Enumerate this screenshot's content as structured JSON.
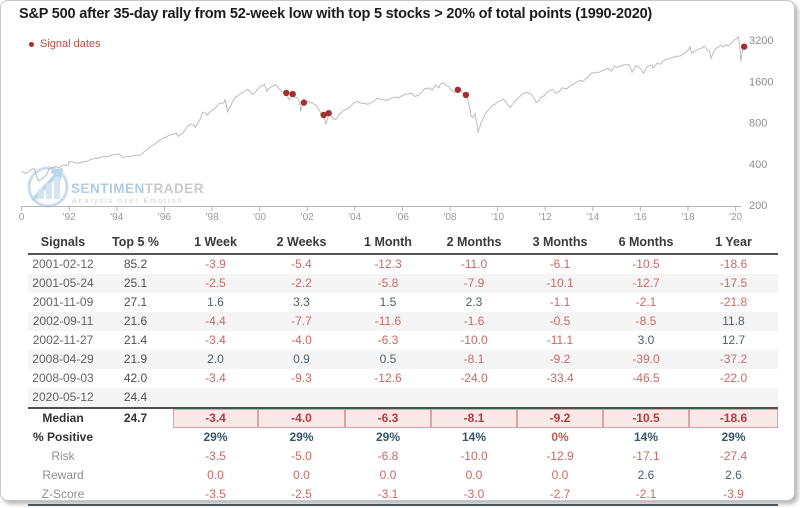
{
  "chart_data": {
    "type": "line",
    "title": "S&P 500 after 35-day rally from 52-week low with top 5 stocks > 20% of total points (1990-2020)",
    "legend": "Signal dates",
    "xlabel": "",
    "ylabel": "",
    "yscale": "log",
    "ylim": [
      200,
      3400
    ],
    "xlim": [
      1990,
      2020.45
    ],
    "yticks": [
      3200,
      1600,
      800,
      400,
      200
    ],
    "xticks": [
      {
        "year": 1990,
        "label": "0"
      },
      {
        "year": 1992,
        "label": "'92"
      },
      {
        "year": 1994,
        "label": "'94"
      },
      {
        "year": 1996,
        "label": "'96"
      },
      {
        "year": 1998,
        "label": "'98"
      },
      {
        "year": 2000,
        "label": "'00"
      },
      {
        "year": 2002,
        "label": "'02"
      },
      {
        "year": 2004,
        "label": "'04"
      },
      {
        "year": 2006,
        "label": "'06"
      },
      {
        "year": 2008,
        "label": "'08"
      },
      {
        "year": 2010,
        "label": "'10"
      },
      {
        "year": 2012,
        "label": "'12"
      },
      {
        "year": 2014,
        "label": "'14"
      },
      {
        "year": 2016,
        "label": "'16"
      },
      {
        "year": 2018,
        "label": "'18"
      },
      {
        "year": 2020,
        "label": "'20"
      }
    ],
    "line_color": "#bcbcbc",
    "signal_color": "#a33030",
    "axis_text_color": "#999999",
    "series": [
      [
        1990.0,
        353
      ],
      [
        1990.15,
        340
      ],
      [
        1990.3,
        350
      ],
      [
        1990.45,
        368
      ],
      [
        1990.55,
        362
      ],
      [
        1990.7,
        300
      ],
      [
        1990.8,
        305
      ],
      [
        1990.95,
        322
      ],
      [
        1991.05,
        330
      ],
      [
        1991.15,
        368
      ],
      [
        1991.3,
        375
      ],
      [
        1991.45,
        380
      ],
      [
        1991.6,
        378
      ],
      [
        1991.75,
        390
      ],
      [
        1991.95,
        388
      ],
      [
        1992.0,
        415
      ],
      [
        1992.2,
        410
      ],
      [
        1992.35,
        405
      ],
      [
        1992.55,
        412
      ],
      [
        1992.75,
        418
      ],
      [
        1992.95,
        432
      ],
      [
        1993.15,
        440
      ],
      [
        1993.35,
        448
      ],
      [
        1993.55,
        450
      ],
      [
        1993.75,
        460
      ],
      [
        1993.95,
        468
      ],
      [
        1994.1,
        472
      ],
      [
        1994.25,
        445
      ],
      [
        1994.45,
        450
      ],
      [
        1994.65,
        455
      ],
      [
        1994.85,
        462
      ],
      [
        1995.0,
        465
      ],
      [
        1995.25,
        505
      ],
      [
        1995.5,
        545
      ],
      [
        1995.75,
        585
      ],
      [
        1995.95,
        615
      ],
      [
        1996.15,
        640
      ],
      [
        1996.35,
        655
      ],
      [
        1996.5,
        670
      ],
      [
        1996.58,
        635
      ],
      [
        1996.75,
        665
      ],
      [
        1996.95,
        740
      ],
      [
        1997.1,
        780
      ],
      [
        1997.25,
        760
      ],
      [
        1997.3,
        740
      ],
      [
        1997.5,
        850
      ],
      [
        1997.6,
        950
      ],
      [
        1997.75,
        930
      ],
      [
        1997.8,
        905
      ],
      [
        1997.95,
        965
      ],
      [
        1998.1,
        1010
      ],
      [
        1998.3,
        1100
      ],
      [
        1998.5,
        1120
      ],
      [
        1998.55,
        1185
      ],
      [
        1998.65,
        957
      ],
      [
        1998.75,
        1040
      ],
      [
        1998.9,
        1160
      ],
      [
        1999.0,
        1230
      ],
      [
        1999.15,
        1280
      ],
      [
        1999.3,
        1330
      ],
      [
        1999.5,
        1400
      ],
      [
        1999.6,
        1340
      ],
      [
        1999.7,
        1280
      ],
      [
        1999.85,
        1350
      ],
      [
        2000.0,
        1455
      ],
      [
        2000.2,
        1527
      ],
      [
        2000.3,
        1360
      ],
      [
        2000.45,
        1450
      ],
      [
        2000.55,
        1470
      ],
      [
        2000.65,
        1520
      ],
      [
        2000.8,
        1430
      ],
      [
        2000.95,
        1330
      ],
      [
        2001.05,
        1350
      ],
      [
        2001.12,
        1318
      ],
      [
        2001.25,
        1170
      ],
      [
        2001.39,
        1293
      ],
      [
        2001.5,
        1225
      ],
      [
        2001.6,
        1210
      ],
      [
        2001.7,
        1085
      ],
      [
        2001.72,
        966
      ],
      [
        2001.8,
        1070
      ],
      [
        2001.86,
        1120
      ],
      [
        2001.95,
        1140
      ],
      [
        2002.1,
        1130
      ],
      [
        2002.25,
        1105
      ],
      [
        2002.4,
        1050
      ],
      [
        2002.5,
        990
      ],
      [
        2002.6,
        920
      ],
      [
        2002.69,
        909
      ],
      [
        2002.76,
        815
      ],
      [
        2002.8,
        777
      ],
      [
        2002.9,
        938
      ],
      [
        2002.97,
        900
      ],
      [
        2003.1,
        860
      ],
      [
        2003.2,
        840
      ],
      [
        2003.35,
        920
      ],
      [
        2003.5,
        975
      ],
      [
        2003.65,
        1000
      ],
      [
        2003.8,
        1040
      ],
      [
        2003.95,
        1110
      ],
      [
        2004.1,
        1140
      ],
      [
        2004.25,
        1110
      ],
      [
        2004.45,
        1095
      ],
      [
        2004.6,
        1100
      ],
      [
        2004.8,
        1140
      ],
      [
        2004.95,
        1210
      ],
      [
        2005.1,
        1180
      ],
      [
        2005.3,
        1160
      ],
      [
        2005.5,
        1200
      ],
      [
        2005.7,
        1230
      ],
      [
        2005.85,
        1210
      ],
      [
        2005.95,
        1250
      ],
      [
        2006.15,
        1290
      ],
      [
        2006.35,
        1310
      ],
      [
        2006.55,
        1240
      ],
      [
        2006.75,
        1300
      ],
      [
        2006.95,
        1420
      ],
      [
        2007.15,
        1430
      ],
      [
        2007.25,
        1380
      ],
      [
        2007.4,
        1500
      ],
      [
        2007.55,
        1450
      ],
      [
        2007.6,
        1540
      ],
      [
        2007.75,
        1565
      ],
      [
        2007.85,
        1480
      ],
      [
        2007.95,
        1470
      ],
      [
        2008.05,
        1380
      ],
      [
        2008.2,
        1330
      ],
      [
        2008.33,
        1390
      ],
      [
        2008.45,
        1400
      ],
      [
        2008.55,
        1280
      ],
      [
        2008.67,
        1275
      ],
      [
        2008.75,
        1160
      ],
      [
        2008.82,
        1060
      ],
      [
        2008.88,
        900
      ],
      [
        2008.95,
        870
      ],
      [
        2009.05,
        930
      ],
      [
        2009.12,
        805
      ],
      [
        2009.18,
        677
      ],
      [
        2009.3,
        790
      ],
      [
        2009.45,
        910
      ],
      [
        2009.6,
        980
      ],
      [
        2009.75,
        1060
      ],
      [
        2009.95,
        1110
      ],
      [
        2010.1,
        1150
      ],
      [
        2010.25,
        1190
      ],
      [
        2010.4,
        1100
      ],
      [
        2010.52,
        1030
      ],
      [
        2010.65,
        1100
      ],
      [
        2010.8,
        1180
      ],
      [
        2010.95,
        1250
      ],
      [
        2011.1,
        1310
      ],
      [
        2011.25,
        1330
      ],
      [
        2011.4,
        1290
      ],
      [
        2011.55,
        1200
      ],
      [
        2011.62,
        1120
      ],
      [
        2011.75,
        1160
      ],
      [
        2011.8,
        1220
      ],
      [
        2011.95,
        1250
      ],
      [
        2012.1,
        1350
      ],
      [
        2012.3,
        1400
      ],
      [
        2012.45,
        1310
      ],
      [
        2012.6,
        1360
      ],
      [
        2012.75,
        1440
      ],
      [
        2012.9,
        1410
      ],
      [
        2013.05,
        1480
      ],
      [
        2013.25,
        1560
      ],
      [
        2013.45,
        1630
      ],
      [
        2013.55,
        1600
      ],
      [
        2013.75,
        1690
      ],
      [
        2013.95,
        1840
      ],
      [
        2014.15,
        1860
      ],
      [
        2014.3,
        1870
      ],
      [
        2014.5,
        1960
      ],
      [
        2014.65,
        1990
      ],
      [
        2014.78,
        1900
      ],
      [
        2014.9,
        2060
      ],
      [
        2015.05,
        2020
      ],
      [
        2015.2,
        2100
      ],
      [
        2015.4,
        2120
      ],
      [
        2015.55,
        2100
      ],
      [
        2015.65,
        1870
      ],
      [
        2015.8,
        2080
      ],
      [
        2015.9,
        2060
      ],
      [
        2016.05,
        1940
      ],
      [
        2016.12,
        1830
      ],
      [
        2016.3,
        2060
      ],
      [
        2016.5,
        2100
      ],
      [
        2016.53,
        2000
      ],
      [
        2016.7,
        2170
      ],
      [
        2016.85,
        2140
      ],
      [
        2016.95,
        2250
      ],
      [
        2017.1,
        2320
      ],
      [
        2017.3,
        2380
      ],
      [
        2017.5,
        2430
      ],
      [
        2017.7,
        2470
      ],
      [
        2017.9,
        2600
      ],
      [
        2018.0,
        2700
      ],
      [
        2018.08,
        2870
      ],
      [
        2018.15,
        2580
      ],
      [
        2018.28,
        2650
      ],
      [
        2018.4,
        2720
      ],
      [
        2018.55,
        2800
      ],
      [
        2018.7,
        2900
      ],
      [
        2018.78,
        2750
      ],
      [
        2018.9,
        2650
      ],
      [
        2018.97,
        2350
      ],
      [
        2019.1,
        2700
      ],
      [
        2019.25,
        2830
      ],
      [
        2019.4,
        2940
      ],
      [
        2019.5,
        2850
      ],
      [
        2019.6,
        2980
      ],
      [
        2019.7,
        2890
      ],
      [
        2019.85,
        3070
      ],
      [
        2019.97,
        3230
      ],
      [
        2020.08,
        3330
      ],
      [
        2020.12,
        3386
      ],
      [
        2020.17,
        2950
      ],
      [
        2020.22,
        2237
      ],
      [
        2020.28,
        2650
      ],
      [
        2020.33,
        2880
      ],
      [
        2020.36,
        2870
      ]
    ],
    "signals": [
      {
        "date": "2001-02-12",
        "year": 2001.12,
        "value": 1318
      },
      {
        "date": "2001-05-24",
        "year": 2001.39,
        "value": 1293
      },
      {
        "date": "2001-11-09",
        "year": 2001.86,
        "value": 1120
      },
      {
        "date": "2002-09-11",
        "year": 2002.69,
        "value": 909
      },
      {
        "date": "2002-11-27",
        "year": 2002.9,
        "value": 938
      },
      {
        "date": "2008-04-29",
        "year": 2008.33,
        "value": 1390
      },
      {
        "date": "2008-09-03",
        "year": 2008.67,
        "value": 1275
      },
      {
        "date": "2020-05-12",
        "year": 2020.36,
        "value": 2870
      }
    ]
  },
  "watermark": {
    "name_blue": "SENTIMEN",
    "name_gray": "TRADER",
    "tagline": "Analysis over Emotion"
  },
  "table": {
    "headers": [
      "Signals",
      "Top 5 %",
      "1 Week",
      "2 Weeks",
      "1 Month",
      "2 Months",
      "3 Months",
      "6 Months",
      "1 Year"
    ],
    "rows": [
      {
        "date": "2001-02-12",
        "top5": "85.2",
        "vals": [
          "-3.9",
          "-5.4",
          "-12.3",
          "-11.0",
          "-6.1",
          "-10.5",
          "-18.6"
        ],
        "cols": "nnnnnnn"
      },
      {
        "date": "2001-05-24",
        "top5": "25.1",
        "vals": [
          "-2.5",
          "-2.2",
          "-5.8",
          "-7.9",
          "-10.1",
          "-12.7",
          "-17.5"
        ],
        "cols": "nnnnnnn"
      },
      {
        "date": "2001-11-09",
        "top5": "27.1",
        "vals": [
          "1.6",
          "3.3",
          "1.5",
          "2.3",
          "-1.1",
          "-2.1",
          "-21.8"
        ],
        "cols": "ppppnnn"
      },
      {
        "date": "2002-09-11",
        "top5": "21.6",
        "vals": [
          "-4.4",
          "-7.7",
          "-11.6",
          "-1.6",
          "-0.5",
          "-8.5",
          "11.8"
        ],
        "cols": "nnnnnnp"
      },
      {
        "date": "2002-11-27",
        "top5": "21.4",
        "vals": [
          "-3.4",
          "-4.0",
          "-6.3",
          "-10.0",
          "-11.1",
          "3.0",
          "12.7"
        ],
        "cols": "nnnnnpp"
      },
      {
        "date": "2008-04-29",
        "top5": "21.9",
        "vals": [
          "2.0",
          "0.9",
          "0.5",
          "-8.1",
          "-9.2",
          "-39.0",
          "-37.2"
        ],
        "cols": "pppnnnn"
      },
      {
        "date": "2008-09-03",
        "top5": "42.0",
        "vals": [
          "-3.4",
          "-9.3",
          "-12.6",
          "-24.0",
          "-33.4",
          "-46.5",
          "-22.0"
        ],
        "cols": "nnnnnnn"
      },
      {
        "date": "2020-05-12",
        "top5": "24.4",
        "vals": [
          "",
          "",
          "",
          "",
          "",
          "",
          ""
        ],
        "cols": "       "
      }
    ],
    "median": {
      "label": "Median",
      "top5": "24.7",
      "vals": [
        "-3.4",
        "-4.0",
        "-6.3",
        "-8.1",
        "-9.2",
        "-10.5",
        "-18.6"
      ]
    },
    "pct_positive": {
      "label": "% Positive",
      "vals": [
        "29%",
        "29%",
        "29%",
        "14%",
        "0%",
        "14%",
        "29%"
      ],
      "cols": "ppppnpp"
    },
    "stats": [
      {
        "label": "Risk",
        "vals": [
          "-3.5",
          "-5.0",
          "-6.8",
          "-10.0",
          "-12.9",
          "-17.1",
          "-27.4"
        ],
        "cols": "nnnnnnn"
      },
      {
        "label": "Reward",
        "vals": [
          "0.0",
          "0.0",
          "0.0",
          "0.0",
          "0.0",
          "2.6",
          "2.6"
        ],
        "cols": "nnnnnpp"
      },
      {
        "label": "Z-Score",
        "vals": [
          "-3.5",
          "-2.5",
          "-3.1",
          "-3.0",
          "-2.7",
          "-2.1",
          "-3.9"
        ],
        "cols": "nnnnnnn"
      }
    ]
  }
}
